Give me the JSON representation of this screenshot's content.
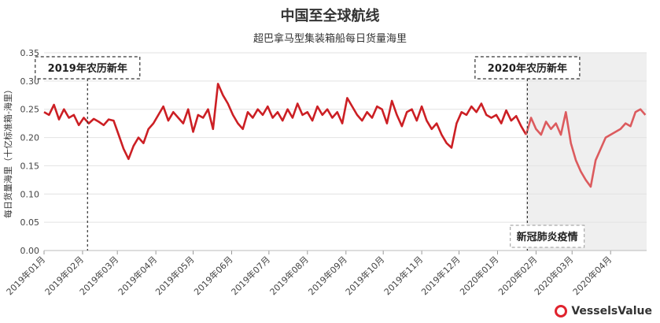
{
  "chart_data": {
    "type": "line",
    "title": "中国至全球航线",
    "subtitle": "超巴拿马型集装箱船每日货量海里",
    "ylabel": "每日货量海里（十亿标准箱-海里）",
    "ylim": [
      0,
      0.35
    ],
    "yticks": [
      "0.00",
      "0.05",
      "0.10",
      "0.15",
      "0.20",
      "0.25",
      "0.30",
      "0.35"
    ],
    "xticks": [
      "2019年01月",
      "2019年02月",
      "2019年03月",
      "2019年04月",
      "2019年05月",
      "2019年06月",
      "2019年07月",
      "2019年08月",
      "2019年09月",
      "2019年10月",
      "2019年11月",
      "2019年12月",
      "2020年01月",
      "2020年02月",
      "2020年03月",
      "2020年04月"
    ],
    "grid": true,
    "colors": {
      "line_before": "#cc1f24",
      "line_after": "#dc5b5e",
      "shade": "#efefef"
    },
    "shaded_region_start": "2020-01-24",
    "annotations": [
      {
        "text": "2019年农历新年",
        "x": "2019-02-05"
      },
      {
        "text": "2020年农历新年",
        "x": "2020-01-25"
      },
      {
        "text": "新冠肺炎疫情",
        "x": "2020-02-10"
      }
    ],
    "series": [
      {
        "x": [
          "2019-01-01",
          "2019-01-05",
          "2019-01-09",
          "2019-01-13",
          "2019-01-17",
          "2019-01-21",
          "2019-01-25",
          "2019-01-29",
          "2019-02-02",
          "2019-02-06",
          "2019-02-10",
          "2019-02-14",
          "2019-02-18",
          "2019-02-22",
          "2019-02-26",
          "2019-03-02",
          "2019-03-06",
          "2019-03-10",
          "2019-03-14",
          "2019-03-18",
          "2019-03-22",
          "2019-03-26",
          "2019-03-30",
          "2019-04-03",
          "2019-04-07",
          "2019-04-11",
          "2019-04-15",
          "2019-04-19",
          "2019-04-23",
          "2019-04-27",
          "2019-05-01",
          "2019-05-05",
          "2019-05-09",
          "2019-05-13",
          "2019-05-17",
          "2019-05-21",
          "2019-05-25",
          "2019-05-29",
          "2019-06-02",
          "2019-06-06",
          "2019-06-10",
          "2019-06-14",
          "2019-06-18",
          "2019-06-22",
          "2019-06-26",
          "2019-06-30",
          "2019-07-04",
          "2019-07-08",
          "2019-07-12",
          "2019-07-16",
          "2019-07-20",
          "2019-07-24",
          "2019-07-28",
          "2019-08-01",
          "2019-08-05",
          "2019-08-09",
          "2019-08-13",
          "2019-08-17",
          "2019-08-21",
          "2019-08-25",
          "2019-08-29",
          "2019-09-02",
          "2019-09-06",
          "2019-09-10",
          "2019-09-14",
          "2019-09-18",
          "2019-09-22",
          "2019-09-26",
          "2019-09-30",
          "2019-10-04",
          "2019-10-08",
          "2019-10-12",
          "2019-10-16",
          "2019-10-20",
          "2019-10-24",
          "2019-10-28",
          "2019-11-01",
          "2019-11-05",
          "2019-11-09",
          "2019-11-13",
          "2019-11-17",
          "2019-11-21",
          "2019-11-25",
          "2019-11-29",
          "2019-12-03",
          "2019-12-07",
          "2019-12-11",
          "2019-12-15",
          "2019-12-19",
          "2019-12-23",
          "2019-12-27",
          "2019-12-31",
          "2020-01-04",
          "2020-01-08",
          "2020-01-12",
          "2020-01-16",
          "2020-01-20",
          "2020-01-24",
          "2020-01-28",
          "2020-02-01",
          "2020-02-05",
          "2020-02-09",
          "2020-02-13",
          "2020-02-17",
          "2020-02-21",
          "2020-02-25",
          "2020-02-29",
          "2020-03-04",
          "2020-03-08",
          "2020-03-12",
          "2020-03-16",
          "2020-03-20",
          "2020-03-24",
          "2020-03-28",
          "2020-04-01",
          "2020-04-05",
          "2020-04-09",
          "2020-04-13",
          "2020-04-17",
          "2020-04-21",
          "2020-04-25",
          "2020-04-29"
        ],
        "y": [
          0.245,
          0.24,
          0.258,
          0.232,
          0.25,
          0.235,
          0.24,
          0.222,
          0.235,
          0.225,
          0.233,
          0.228,
          0.222,
          0.232,
          0.23,
          0.205,
          0.18,
          0.162,
          0.185,
          0.2,
          0.19,
          0.215,
          0.225,
          0.24,
          0.255,
          0.23,
          0.245,
          0.235,
          0.225,
          0.25,
          0.21,
          0.24,
          0.235,
          0.25,
          0.215,
          0.295,
          0.275,
          0.26,
          0.24,
          0.225,
          0.215,
          0.245,
          0.235,
          0.25,
          0.24,
          0.255,
          0.235,
          0.245,
          0.23,
          0.25,
          0.235,
          0.26,
          0.24,
          0.245,
          0.23,
          0.255,
          0.24,
          0.25,
          0.235,
          0.245,
          0.225,
          0.27,
          0.255,
          0.24,
          0.23,
          0.245,
          0.235,
          0.255,
          0.25,
          0.225,
          0.265,
          0.24,
          0.22,
          0.245,
          0.25,
          0.23,
          0.255,
          0.23,
          0.215,
          0.225,
          0.205,
          0.19,
          0.182,
          0.225,
          0.245,
          0.24,
          0.255,
          0.245,
          0.26,
          0.24,
          0.235,
          0.24,
          0.225,
          0.248,
          0.23,
          0.238,
          0.22,
          0.205,
          0.235,
          0.215,
          0.205,
          0.228,
          0.215,
          0.225,
          0.205,
          0.245,
          0.19,
          0.16,
          0.14,
          0.125,
          0.113,
          0.16,
          0.18,
          0.2,
          0.205,
          0.21,
          0.215,
          0.225,
          0.22,
          0.245,
          0.25,
          0.24
        ]
      }
    ]
  },
  "brand": {
    "name": "VesselsValue"
  }
}
